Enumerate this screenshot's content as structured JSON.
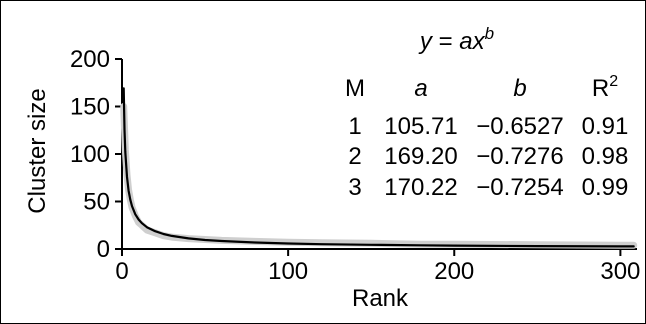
{
  "chart_data": {
    "type": "line",
    "title": "",
    "xlabel": "Rank",
    "ylabel": "Cluster size",
    "xlim": [
      0,
      310
    ],
    "ylim": [
      0,
      200
    ],
    "xticks": [
      0,
      100,
      200,
      300
    ],
    "yticks": [
      0,
      50,
      100,
      150,
      200
    ],
    "grid": false,
    "series": [
      {
        "color": "#cfcfcf",
        "x": [
          1,
          2,
          3,
          4,
          5,
          6,
          8,
          10,
          12,
          15,
          20,
          25,
          30,
          40,
          50,
          60,
          80,
          100,
          120,
          150,
          180,
          200,
          250,
          300,
          308
        ],
        "y": [
          150,
          105,
          78,
          62,
          52,
          44,
          35,
          28,
          25,
          20,
          17,
          14,
          12.5,
          11,
          10,
          9,
          8,
          7,
          6.5,
          6,
          5,
          5,
          4.5,
          4,
          4
        ]
      },
      {
        "color": "#000000",
        "x": [
          1,
          1.5,
          2,
          3,
          4,
          5,
          6,
          8,
          10,
          12,
          15,
          20,
          25,
          30,
          40,
          50,
          60,
          80,
          100,
          120,
          150,
          180,
          200,
          250,
          300,
          308
        ],
        "y": [
          169.2,
          125.6,
          102.1,
          75.8,
          61.3,
          51.9,
          45.2,
          36.5,
          31.1,
          27.2,
          23.0,
          18.7,
          15.8,
          13.8,
          11.2,
          9.5,
          8.4,
          6.8,
          5.8,
          5.1,
          4.4,
          3.9,
          3.6,
          3.1,
          2.7,
          2.7
        ]
      }
    ],
    "annotation": {
      "formula": [
        "y",
        " = ",
        "ax",
        "b"
      ],
      "headers": [
        "M",
        "a",
        "b",
        "R2"
      ],
      "rows": [
        [
          "1",
          "105.71",
          "−0.6527",
          "0.91"
        ],
        [
          "2",
          "169.20",
          "−0.7276",
          "0.98"
        ],
        [
          "3",
          "170.22",
          "−0.7254",
          "0.99"
        ]
      ]
    }
  }
}
